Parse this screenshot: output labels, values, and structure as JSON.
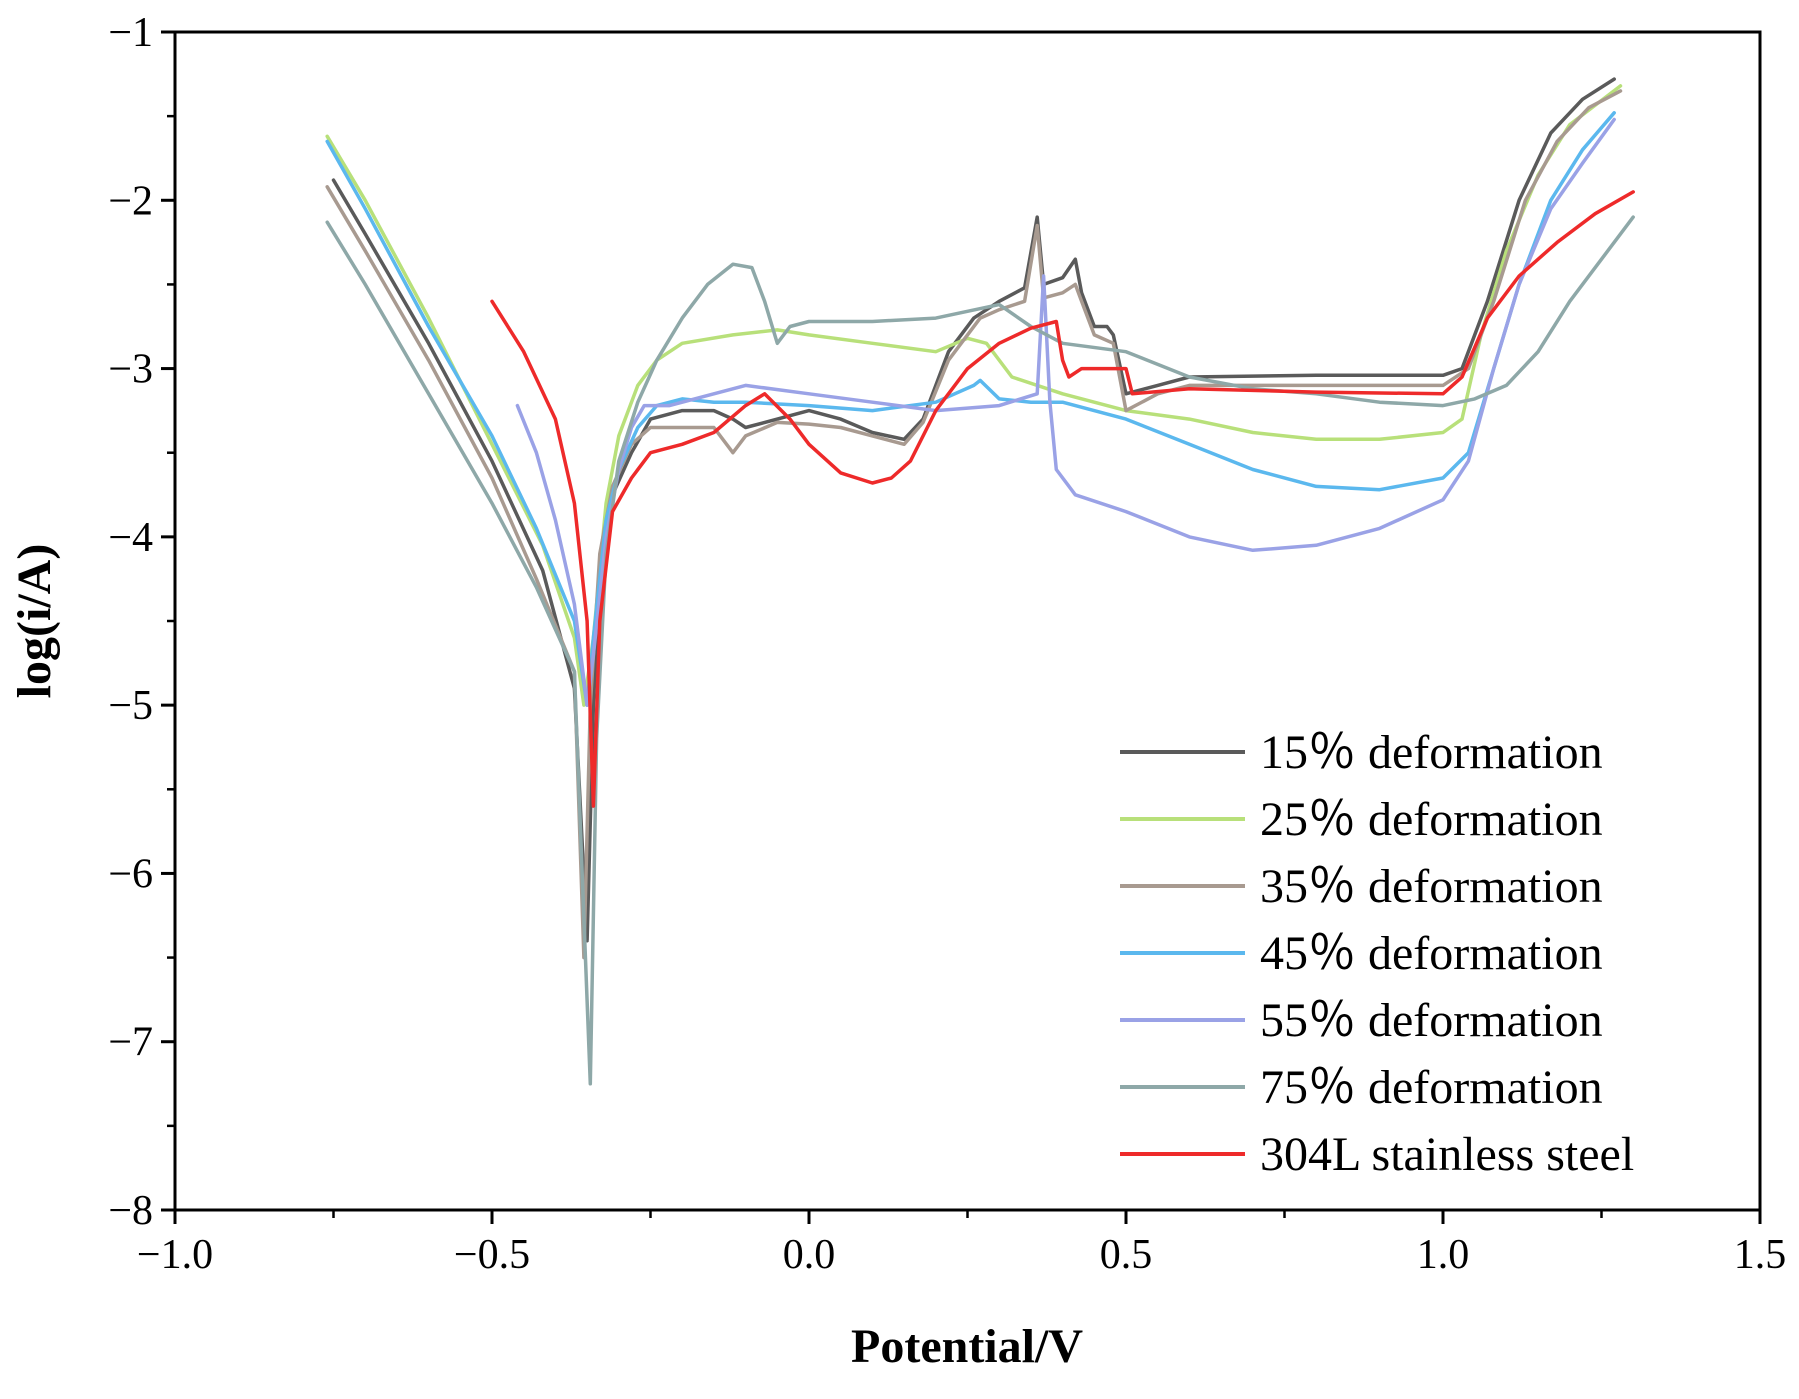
{
  "chart_data": {
    "type": "line",
    "title": "",
    "xlabel": "Potential/V",
    "ylabel": "log(i/A)",
    "xlim": [
      -1.0,
      1.5
    ],
    "ylim": [
      -8,
      -1
    ],
    "xticks": [
      -1.0,
      -0.5,
      0.0,
      0.5,
      1.0,
      1.5
    ],
    "xtick_labels": [
      "−1.0",
      "−0.5",
      "0.0",
      "0.5",
      "1.0",
      "1.5"
    ],
    "yticks": [
      -8,
      -7,
      -6,
      -5,
      -4,
      -3,
      -2,
      -1
    ],
    "ytick_labels": [
      "−8",
      "−7",
      "−6",
      "−5",
      "−4",
      "−3",
      "−2",
      "−1"
    ],
    "legend_position": "bottom-right",
    "series": [
      {
        "name": "15％ deformation",
        "color": "#5a5a5a",
        "points": [
          [
            -0.75,
            -1.88
          ],
          [
            -0.7,
            -2.2
          ],
          [
            -0.6,
            -2.85
          ],
          [
            -0.5,
            -3.55
          ],
          [
            -0.42,
            -4.2
          ],
          [
            -0.37,
            -4.9
          ],
          [
            -0.35,
            -6.4
          ],
          [
            -0.34,
            -5.0
          ],
          [
            -0.33,
            -4.2
          ],
          [
            -0.31,
            -3.75
          ],
          [
            -0.28,
            -3.5
          ],
          [
            -0.25,
            -3.3
          ],
          [
            -0.2,
            -3.25
          ],
          [
            -0.15,
            -3.25
          ],
          [
            -0.12,
            -3.3
          ],
          [
            -0.1,
            -3.35
          ],
          [
            -0.05,
            -3.3
          ],
          [
            0.0,
            -3.25
          ],
          [
            0.05,
            -3.3
          ],
          [
            0.1,
            -3.38
          ],
          [
            0.15,
            -3.42
          ],
          [
            0.18,
            -3.3
          ],
          [
            0.22,
            -2.9
          ],
          [
            0.26,
            -2.7
          ],
          [
            0.3,
            -2.6
          ],
          [
            0.34,
            -2.52
          ],
          [
            0.36,
            -2.1
          ],
          [
            0.37,
            -2.5
          ],
          [
            0.4,
            -2.46
          ],
          [
            0.42,
            -2.35
          ],
          [
            0.43,
            -2.55
          ],
          [
            0.45,
            -2.75
          ],
          [
            0.47,
            -2.75
          ],
          [
            0.48,
            -2.8
          ],
          [
            0.5,
            -3.15
          ],
          [
            0.55,
            -3.1
          ],
          [
            0.6,
            -3.05
          ],
          [
            0.8,
            -3.04
          ],
          [
            1.0,
            -3.04
          ],
          [
            1.03,
            -3.0
          ],
          [
            1.07,
            -2.6
          ],
          [
            1.12,
            -2.0
          ],
          [
            1.17,
            -1.6
          ],
          [
            1.22,
            -1.4
          ],
          [
            1.27,
            -1.28
          ]
        ]
      },
      {
        "name": "25％ deformation",
        "color": "#b8e07a",
        "points": [
          [
            -0.76,
            -1.62
          ],
          [
            -0.7,
            -2.0
          ],
          [
            -0.6,
            -2.7
          ],
          [
            -0.5,
            -3.45
          ],
          [
            -0.42,
            -4.05
          ],
          [
            -0.37,
            -4.6
          ],
          [
            -0.355,
            -5.0
          ],
          [
            -0.34,
            -4.6
          ],
          [
            -0.32,
            -3.8
          ],
          [
            -0.3,
            -3.4
          ],
          [
            -0.27,
            -3.1
          ],
          [
            -0.24,
            -2.95
          ],
          [
            -0.2,
            -2.85
          ],
          [
            -0.12,
            -2.8
          ],
          [
            -0.05,
            -2.77
          ],
          [
            0.0,
            -2.8
          ],
          [
            0.1,
            -2.85
          ],
          [
            0.2,
            -2.9
          ],
          [
            0.25,
            -2.82
          ],
          [
            0.28,
            -2.85
          ],
          [
            0.32,
            -3.05
          ],
          [
            0.4,
            -3.15
          ],
          [
            0.5,
            -3.25
          ],
          [
            0.6,
            -3.3
          ],
          [
            0.7,
            -3.38
          ],
          [
            0.8,
            -3.42
          ],
          [
            0.9,
            -3.42
          ],
          [
            1.0,
            -3.38
          ],
          [
            1.03,
            -3.3
          ],
          [
            1.06,
            -2.8
          ],
          [
            1.1,
            -2.3
          ],
          [
            1.15,
            -1.85
          ],
          [
            1.2,
            -1.55
          ],
          [
            1.28,
            -1.32
          ]
        ]
      },
      {
        "name": "35％ deformation",
        "color": "#a89a90",
        "points": [
          [
            -0.76,
            -1.92
          ],
          [
            -0.7,
            -2.3
          ],
          [
            -0.6,
            -2.95
          ],
          [
            -0.5,
            -3.65
          ],
          [
            -0.43,
            -4.25
          ],
          [
            -0.37,
            -4.8
          ],
          [
            -0.355,
            -6.5
          ],
          [
            -0.345,
            -5.0
          ],
          [
            -0.33,
            -4.1
          ],
          [
            -0.31,
            -3.7
          ],
          [
            -0.28,
            -3.45
          ],
          [
            -0.25,
            -3.35
          ],
          [
            -0.2,
            -3.35
          ],
          [
            -0.15,
            -3.35
          ],
          [
            -0.12,
            -3.5
          ],
          [
            -0.1,
            -3.4
          ],
          [
            -0.05,
            -3.32
          ],
          [
            0.0,
            -3.33
          ],
          [
            0.05,
            -3.35
          ],
          [
            0.1,
            -3.4
          ],
          [
            0.15,
            -3.45
          ],
          [
            0.18,
            -3.32
          ],
          [
            0.22,
            -2.95
          ],
          [
            0.27,
            -2.7
          ],
          [
            0.3,
            -2.65
          ],
          [
            0.34,
            -2.6
          ],
          [
            0.36,
            -2.15
          ],
          [
            0.37,
            -2.58
          ],
          [
            0.4,
            -2.55
          ],
          [
            0.42,
            -2.5
          ],
          [
            0.43,
            -2.6
          ],
          [
            0.45,
            -2.8
          ],
          [
            0.48,
            -2.85
          ],
          [
            0.5,
            -3.25
          ],
          [
            0.55,
            -3.15
          ],
          [
            0.6,
            -3.1
          ],
          [
            0.8,
            -3.1
          ],
          [
            1.0,
            -3.1
          ],
          [
            1.04,
            -3.0
          ],
          [
            1.08,
            -2.6
          ],
          [
            1.13,
            -2.0
          ],
          [
            1.18,
            -1.65
          ],
          [
            1.23,
            -1.45
          ],
          [
            1.28,
            -1.35
          ]
        ]
      },
      {
        "name": "45％ deformation",
        "color": "#5bb8ee",
        "points": [
          [
            -0.76,
            -1.65
          ],
          [
            -0.7,
            -2.05
          ],
          [
            -0.6,
            -2.75
          ],
          [
            -0.5,
            -3.4
          ],
          [
            -0.43,
            -3.95
          ],
          [
            -0.37,
            -4.5
          ],
          [
            -0.35,
            -5.0
          ],
          [
            -0.34,
            -4.6
          ],
          [
            -0.32,
            -3.9
          ],
          [
            -0.3,
            -3.6
          ],
          [
            -0.27,
            -3.35
          ],
          [
            -0.24,
            -3.22
          ],
          [
            -0.2,
            -3.18
          ],
          [
            -0.15,
            -3.2
          ],
          [
            -0.1,
            -3.2
          ],
          [
            0.0,
            -3.22
          ],
          [
            0.1,
            -3.25
          ],
          [
            0.2,
            -3.2
          ],
          [
            0.26,
            -3.1
          ],
          [
            0.27,
            -3.07
          ],
          [
            0.3,
            -3.18
          ],
          [
            0.35,
            -3.2
          ],
          [
            0.4,
            -3.2
          ],
          [
            0.5,
            -3.3
          ],
          [
            0.6,
            -3.45
          ],
          [
            0.7,
            -3.6
          ],
          [
            0.8,
            -3.7
          ],
          [
            0.9,
            -3.72
          ],
          [
            1.0,
            -3.65
          ],
          [
            1.04,
            -3.5
          ],
          [
            1.08,
            -3.0
          ],
          [
            1.12,
            -2.5
          ],
          [
            1.17,
            -2.0
          ],
          [
            1.22,
            -1.7
          ],
          [
            1.27,
            -1.48
          ]
        ]
      },
      {
        "name": "55％ deformation",
        "color": "#9aa2e6",
        "points": [
          [
            -0.46,
            -3.22
          ],
          [
            -0.43,
            -3.5
          ],
          [
            -0.4,
            -3.9
          ],
          [
            -0.37,
            -4.4
          ],
          [
            -0.35,
            -5.0
          ],
          [
            -0.34,
            -4.7
          ],
          [
            -0.32,
            -4.0
          ],
          [
            -0.3,
            -3.6
          ],
          [
            -0.28,
            -3.35
          ],
          [
            -0.26,
            -3.22
          ],
          [
            -0.22,
            -3.22
          ],
          [
            -0.15,
            -3.15
          ],
          [
            -0.1,
            -3.1
          ],
          [
            0.0,
            -3.15
          ],
          [
            0.1,
            -3.2
          ],
          [
            0.2,
            -3.25
          ],
          [
            0.3,
            -3.22
          ],
          [
            0.36,
            -3.15
          ],
          [
            0.37,
            -2.45
          ],
          [
            0.38,
            -3.2
          ],
          [
            0.39,
            -3.6
          ],
          [
            0.42,
            -3.75
          ],
          [
            0.5,
            -3.85
          ],
          [
            0.6,
            -4.0
          ],
          [
            0.7,
            -4.08
          ],
          [
            0.8,
            -4.05
          ],
          [
            0.9,
            -3.95
          ],
          [
            1.0,
            -3.78
          ],
          [
            1.04,
            -3.55
          ],
          [
            1.08,
            -3.0
          ],
          [
            1.12,
            -2.5
          ],
          [
            1.17,
            -2.05
          ],
          [
            1.22,
            -1.78
          ],
          [
            1.27,
            -1.52
          ]
        ]
      },
      {
        "name": "75％ deformation",
        "color": "#8ea8a8",
        "points": [
          [
            -0.76,
            -2.13
          ],
          [
            -0.7,
            -2.5
          ],
          [
            -0.6,
            -3.15
          ],
          [
            -0.5,
            -3.8
          ],
          [
            -0.43,
            -4.3
          ],
          [
            -0.37,
            -4.8
          ],
          [
            -0.345,
            -7.25
          ],
          [
            -0.335,
            -5.2
          ],
          [
            -0.32,
            -4.1
          ],
          [
            -0.3,
            -3.55
          ],
          [
            -0.27,
            -3.2
          ],
          [
            -0.24,
            -2.95
          ],
          [
            -0.2,
            -2.7
          ],
          [
            -0.16,
            -2.5
          ],
          [
            -0.12,
            -2.38
          ],
          [
            -0.09,
            -2.4
          ],
          [
            -0.07,
            -2.6
          ],
          [
            -0.05,
            -2.85
          ],
          [
            -0.03,
            -2.75
          ],
          [
            0.0,
            -2.72
          ],
          [
            0.1,
            -2.72
          ],
          [
            0.2,
            -2.7
          ],
          [
            0.3,
            -2.62
          ],
          [
            0.35,
            -2.75
          ],
          [
            0.4,
            -2.85
          ],
          [
            0.5,
            -2.9
          ],
          [
            0.6,
            -3.05
          ],
          [
            0.7,
            -3.12
          ],
          [
            0.8,
            -3.15
          ],
          [
            0.9,
            -3.2
          ],
          [
            1.0,
            -3.22
          ],
          [
            1.05,
            -3.18
          ],
          [
            1.1,
            -3.1
          ],
          [
            1.15,
            -2.9
          ],
          [
            1.2,
            -2.6
          ],
          [
            1.25,
            -2.35
          ],
          [
            1.3,
            -2.1
          ]
        ]
      },
      {
        "name": "304L stainless steel",
        "color": "#ee2a2a",
        "points": [
          [
            -0.5,
            -2.6
          ],
          [
            -0.45,
            -2.9
          ],
          [
            -0.4,
            -3.3
          ],
          [
            -0.37,
            -3.8
          ],
          [
            -0.35,
            -4.5
          ],
          [
            -0.34,
            -5.6
          ],
          [
            -0.33,
            -4.5
          ],
          [
            -0.31,
            -3.85
          ],
          [
            -0.28,
            -3.65
          ],
          [
            -0.25,
            -3.5
          ],
          [
            -0.2,
            -3.45
          ],
          [
            -0.15,
            -3.38
          ],
          [
            -0.1,
            -3.22
          ],
          [
            -0.07,
            -3.15
          ],
          [
            -0.03,
            -3.3
          ],
          [
            0.0,
            -3.45
          ],
          [
            0.05,
            -3.62
          ],
          [
            0.1,
            -3.68
          ],
          [
            0.13,
            -3.65
          ],
          [
            0.16,
            -3.55
          ],
          [
            0.2,
            -3.25
          ],
          [
            0.25,
            -3.0
          ],
          [
            0.3,
            -2.85
          ],
          [
            0.35,
            -2.76
          ],
          [
            0.39,
            -2.72
          ],
          [
            0.4,
            -2.95
          ],
          [
            0.41,
            -3.05
          ],
          [
            0.43,
            -3.0
          ],
          [
            0.5,
            -3.0
          ],
          [
            0.51,
            -3.15
          ],
          [
            0.6,
            -3.12
          ],
          [
            0.8,
            -3.14
          ],
          [
            1.0,
            -3.15
          ],
          [
            1.03,
            -3.05
          ],
          [
            1.07,
            -2.7
          ],
          [
            1.12,
            -2.45
          ],
          [
            1.18,
            -2.25
          ],
          [
            1.24,
            -2.08
          ],
          [
            1.3,
            -1.95
          ]
        ]
      }
    ]
  }
}
